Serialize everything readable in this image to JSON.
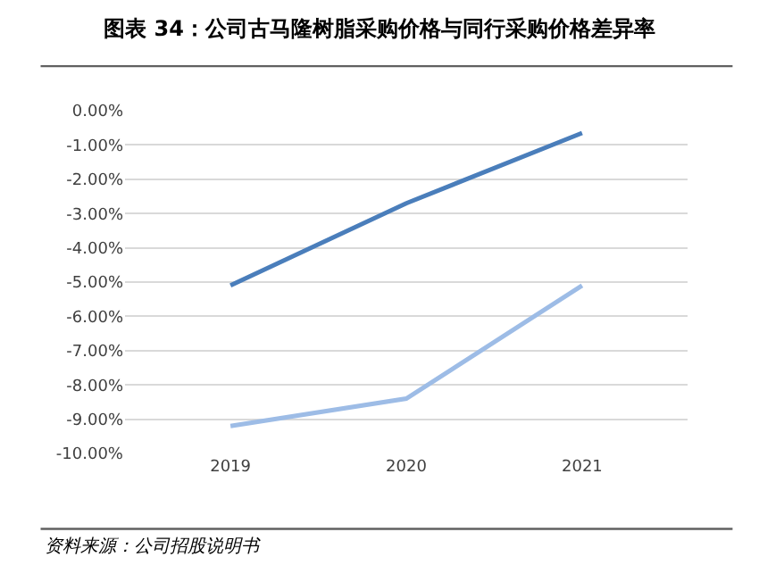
{
  "chart_data": {
    "type": "line",
    "title": "图表 34：公司古马隆树脂采购价格与同行采购价格差异率",
    "categories": [
      "2019",
      "2020",
      "2021"
    ],
    "series": [
      {
        "color": "#4a7ebb",
        "values": [
          -5.1,
          -2.7,
          -0.65
        ]
      },
      {
        "color": "#9dbce6",
        "values": [
          -9.2,
          -8.4,
          -5.1
        ]
      }
    ],
    "ylim": [
      -10,
      0
    ],
    "yticks": [
      {
        "value": 0,
        "label": "0.00%"
      },
      {
        "value": -1,
        "label": "-1.00%"
      },
      {
        "value": -2,
        "label": "-2.00%"
      },
      {
        "value": -3,
        "label": "-3.00%"
      },
      {
        "value": -4,
        "label": "-4.00%"
      },
      {
        "value": -5,
        "label": "-5.00%"
      },
      {
        "value": -6,
        "label": "-6.00%"
      },
      {
        "value": -7,
        "label": "-7.00%"
      },
      {
        "value": -8,
        "label": "-8.00%"
      },
      {
        "value": -9,
        "label": "-9.00%"
      },
      {
        "value": -10,
        "label": "-10.00%"
      }
    ],
    "grid": "y",
    "annotations": [
      "资料来源：公司招股说明书"
    ]
  }
}
